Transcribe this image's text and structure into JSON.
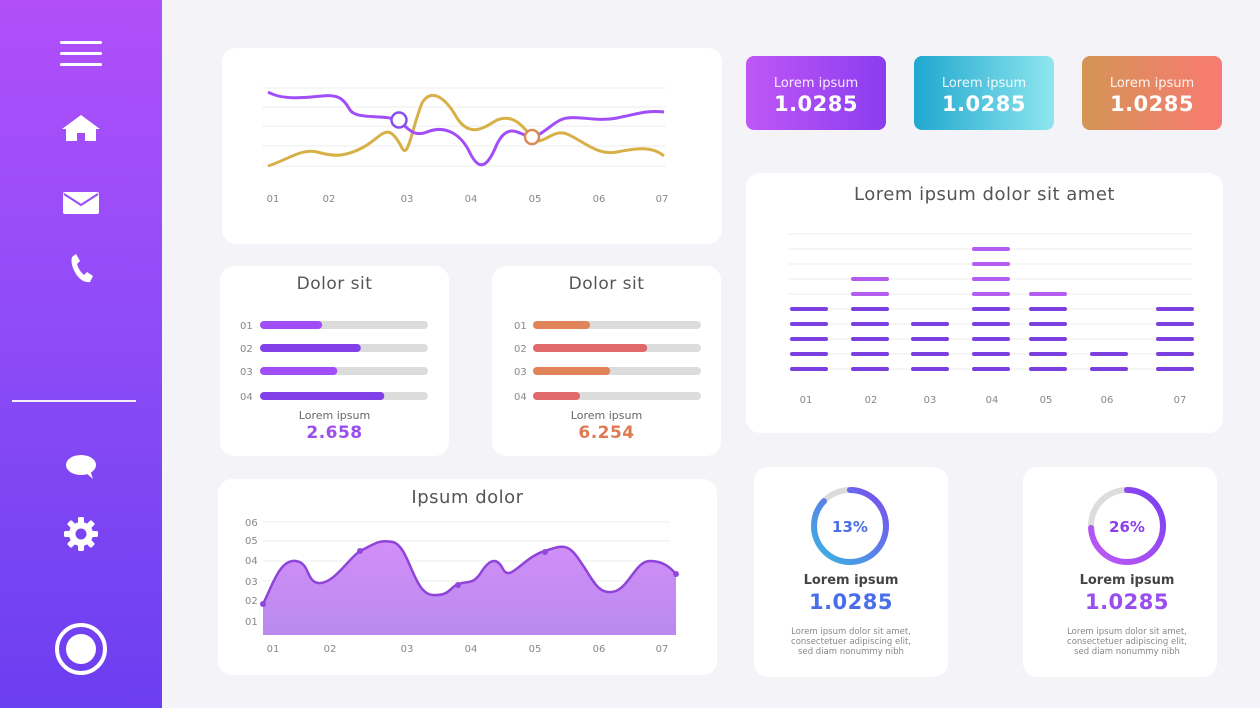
{
  "colors": {
    "purple": "#a24ef8",
    "violet": "#7a3fe8",
    "gold": "#d8b048",
    "orange": "#de7a52",
    "teal": "#2ab0d0",
    "gray": "#dcdcdc"
  },
  "sidebar": {
    "icons": [
      "menu-icon",
      "home-icon",
      "mail-icon",
      "phone-icon",
      "chat-icon",
      "gear-icon",
      "record-icon"
    ]
  },
  "kpis": [
    {
      "label": "Lorem ipsum",
      "value": "1.0285"
    },
    {
      "label": "Lorem ipsum",
      "value": "1.0285"
    },
    {
      "label": "Lorem ipsum",
      "value": "1.0285"
    }
  ],
  "line_chart": {
    "x_labels": [
      "01",
      "02",
      "03",
      "04",
      "05",
      "06",
      "07"
    ]
  },
  "progress_cards": [
    {
      "title": "Dolor sit",
      "row_labels": [
        "01",
        "02",
        "03",
        "04"
      ],
      "fills": [
        0.37,
        0.6,
        0.46,
        0.74
      ],
      "label": "Lorem ipsum",
      "value": "2.658"
    },
    {
      "title": "Dolor sit",
      "row_labels": [
        "01",
        "02",
        "03",
        "04"
      ],
      "fills": [
        0.34,
        0.68,
        0.46,
        0.28
      ],
      "label": "Lorem ipsum",
      "value": "6.254"
    }
  ],
  "bar_chart": {
    "title": "Lorem ipsum dolor sit amet",
    "x_labels": [
      "01",
      "02",
      "03",
      "04",
      "05",
      "06",
      "07"
    ]
  },
  "area_chart": {
    "title": "Ipsum dolor",
    "y_labels": [
      "06",
      "05",
      "04",
      "03",
      "02",
      "01"
    ],
    "x_labels": [
      "01",
      "02",
      "03",
      "04",
      "05",
      "06",
      "07"
    ]
  },
  "donuts": [
    {
      "percent": "13%",
      "fraction": 0.87,
      "label": "Lorem ipsum",
      "value": "1.0285",
      "desc": [
        "Lorem ipsum dolor sit amet,",
        "consectetuer adipiscing elit,",
        "sed diam nonummy nibh"
      ]
    },
    {
      "percent": "26%",
      "fraction": 0.74,
      "label": "Lorem ipsum",
      "value": "1.0285",
      "desc": [
        "Lorem ipsum dolor sit amet,",
        "consectetuer adipiscing elit,",
        "sed diam nonummy nibh"
      ]
    }
  ]
}
